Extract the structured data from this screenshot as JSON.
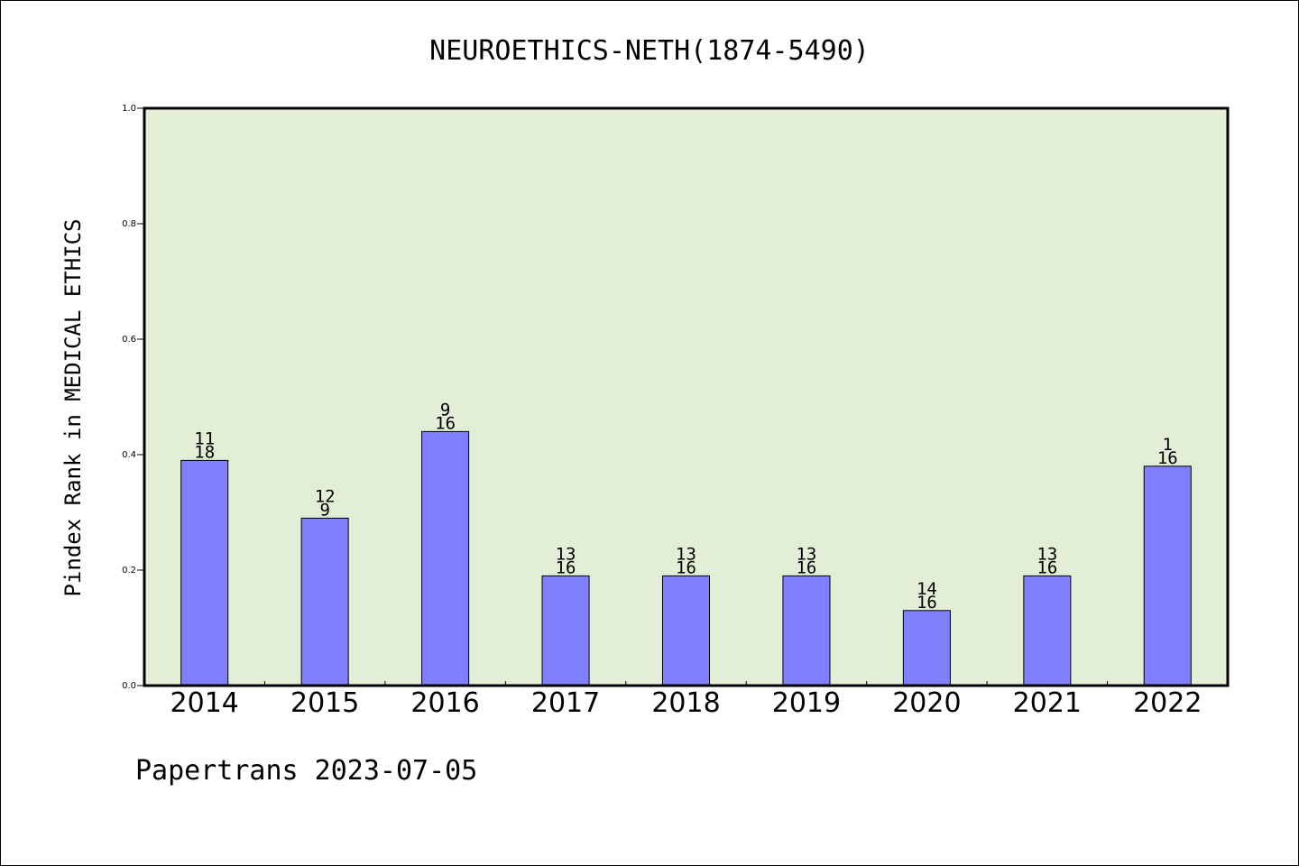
{
  "chart_data": {
    "type": "bar",
    "title": "NEUROETHICS-NETH(1874-5490)",
    "ylabel": "Pindex Rank in MEDICAL ETHICS",
    "xlabel": "",
    "footer": "Papertrans 2023-07-05",
    "categories": [
      "2014",
      "2015",
      "2016",
      "2017",
      "2018",
      "2019",
      "2020",
      "2021",
      "2022"
    ],
    "values": [
      0.39,
      0.29,
      0.44,
      0.19,
      0.19,
      0.19,
      0.13,
      0.19,
      0.38
    ],
    "label_top": [
      "11",
      "12",
      "9",
      "13",
      "13",
      "13",
      "14",
      "13",
      "1"
    ],
    "label_bottom": [
      "18",
      "9",
      "16",
      "16",
      "16",
      "16",
      "16",
      "16",
      "16"
    ],
    "yticks": [
      "0.0",
      "0.2",
      "0.4",
      "0.6",
      "0.8",
      "1.0"
    ],
    "ylim": [
      0,
      1.0
    ],
    "grid": false,
    "colors": {
      "plot_background": "#e2efd6",
      "bar_fill": "#8080ff",
      "bar_edge": "#000000"
    }
  }
}
